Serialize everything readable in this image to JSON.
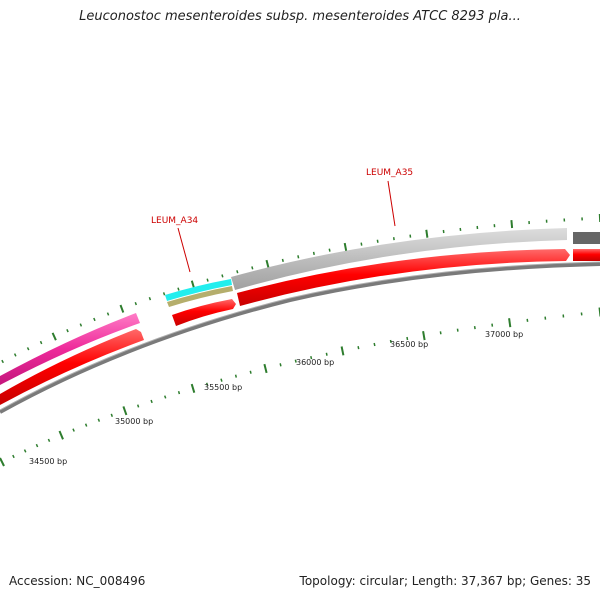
{
  "title": "Leuconostoc mesenteroides subsp. mesenteroides ATCC 8293 pla...",
  "footer": {
    "accession": "Accession: NC_008496",
    "summary": "Topology: circular; Length: 37,367 bp; Genes: 35"
  },
  "scale_labels": [
    "34500 bp",
    "35000 bp",
    "35500 bp",
    "36000 bp",
    "36500 bp",
    "37000 bp"
  ],
  "gene_labels": [
    "LEUM_A34",
    "LEUM_A35"
  ],
  "colors": {
    "cds": "#ff0000",
    "cds_dark": "#cc0000",
    "feature_pink": "#ee2a9a",
    "feature_cyan": "#22eeee",
    "feature_olive": "#b5ae6c",
    "feature_light_gray": "#bdbdbd",
    "feature_dark_gray": "#666666",
    "backbone": "#808080",
    "tick": "#2e7d2e",
    "label_red": "#cc0000"
  }
}
